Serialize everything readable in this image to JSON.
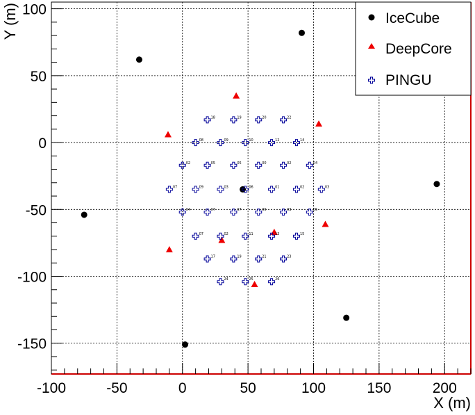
{
  "chart_data": {
    "type": "scatter",
    "xlabel": "X (m)",
    "ylabel": "Y (m)",
    "xlim": [
      -100,
      220
    ],
    "ylim": [
      -173,
      105
    ],
    "grid": true,
    "legend_position": "top-right",
    "x_ticks": [
      -100,
      -50,
      0,
      50,
      100,
      150,
      200
    ],
    "x_tick_labels": [
      "-100",
      "-50",
      "0",
      "50",
      "100",
      "150",
      "200"
    ],
    "y_ticks": [
      -150,
      -100,
      -50,
      0,
      50,
      100
    ],
    "y_tick_labels": [
      "-150",
      "-100",
      "-50",
      "0",
      "50",
      "100"
    ],
    "colors": {
      "icecube": "#000000",
      "deepcore": "#ee0000",
      "pingu": "#000099",
      "frame_right_bottom": "#cc0000"
    },
    "series": [
      {
        "name": "IceCube",
        "marker": "circle",
        "points": [
          {
            "x": -33,
            "y": 62
          },
          {
            "x": 91,
            "y": 82
          },
          {
            "x": -75,
            "y": -54
          },
          {
            "x": 46,
            "y": -35
          },
          {
            "x": 194,
            "y": -31
          },
          {
            "x": 125,
            "y": -131
          },
          {
            "x": 2,
            "y": -151
          }
        ]
      },
      {
        "name": "DeepCore",
        "marker": "triangle",
        "points": [
          {
            "x": 41,
            "y": 35
          },
          {
            "x": -11,
            "y": 6
          },
          {
            "x": 104,
            "y": 14
          },
          {
            "x": 109,
            "y": -61
          },
          {
            "x": -10,
            "y": -80
          },
          {
            "x": 30,
            "y": -73
          },
          {
            "x": 70,
            "y": -67
          },
          {
            "x": 55,
            "y": -106
          }
        ]
      },
      {
        "name": "PINGU",
        "marker": "open-cross",
        "points": [
          {
            "x": 19,
            "y": 17,
            "label": "18"
          },
          {
            "x": 39,
            "y": 17,
            "label": "19"
          },
          {
            "x": 58,
            "y": 17,
            "label": "20"
          },
          {
            "x": 77,
            "y": 17,
            "label": "22"
          },
          {
            "x": 10,
            "y": 0,
            "label": "08"
          },
          {
            "x": 29,
            "y": 0,
            "label": "09"
          },
          {
            "x": 48,
            "y": 0,
            "label": "10"
          },
          {
            "x": 68,
            "y": 0,
            "label": "12"
          },
          {
            "x": 87,
            "y": 0,
            "label": "14"
          },
          {
            "x": 0,
            "y": -17,
            "label": "02"
          },
          {
            "x": 19,
            "y": -17,
            "label": "05"
          },
          {
            "x": 39,
            "y": -17,
            "label": "05"
          },
          {
            "x": 58,
            "y": -17,
            "label": "00"
          },
          {
            "x": 77,
            "y": -17,
            "label": "02"
          },
          {
            "x": 97,
            "y": -17,
            "label": "04"
          },
          {
            "x": -10,
            "y": -35,
            "label": "07"
          },
          {
            "x": 10,
            "y": -35,
            "label": "09"
          },
          {
            "x": 29,
            "y": -35,
            "label": "03"
          },
          {
            "x": 48,
            "y": -35,
            "label": "06"
          },
          {
            "x": 68,
            "y": -35,
            "label": "01"
          },
          {
            "x": 87,
            "y": -35,
            "label": "02"
          },
          {
            "x": 106,
            "y": -35,
            "label": "03"
          },
          {
            "x": 0,
            "y": -52,
            "label": "04"
          },
          {
            "x": 19,
            "y": -52,
            "label": "07"
          },
          {
            "x": 39,
            "y": -52,
            "label": "07"
          },
          {
            "x": 58,
            "y": -52,
            "label": "00"
          },
          {
            "x": 77,
            "y": -52,
            "label": "03"
          },
          {
            "x": 97,
            "y": -52,
            "label": "05"
          },
          {
            "x": 10,
            "y": -70,
            "label": "07"
          },
          {
            "x": 29,
            "y": -70,
            "label": "02"
          },
          {
            "x": 48,
            "y": -70,
            "label": "11"
          },
          {
            "x": 68,
            "y": -70,
            "label": "13"
          },
          {
            "x": 87,
            "y": -70,
            "label": "15"
          },
          {
            "x": 19,
            "y": -87,
            "label": "17"
          },
          {
            "x": 39,
            "y": -87,
            "label": "19"
          },
          {
            "x": 58,
            "y": -87,
            "label": "21"
          },
          {
            "x": 77,
            "y": -87,
            "label": "23"
          },
          {
            "x": 29,
            "y": -104,
            "label": "24"
          },
          {
            "x": 48,
            "y": -104,
            "label": "25"
          },
          {
            "x": 68,
            "y": -104,
            "label": "26"
          }
        ]
      }
    ]
  }
}
